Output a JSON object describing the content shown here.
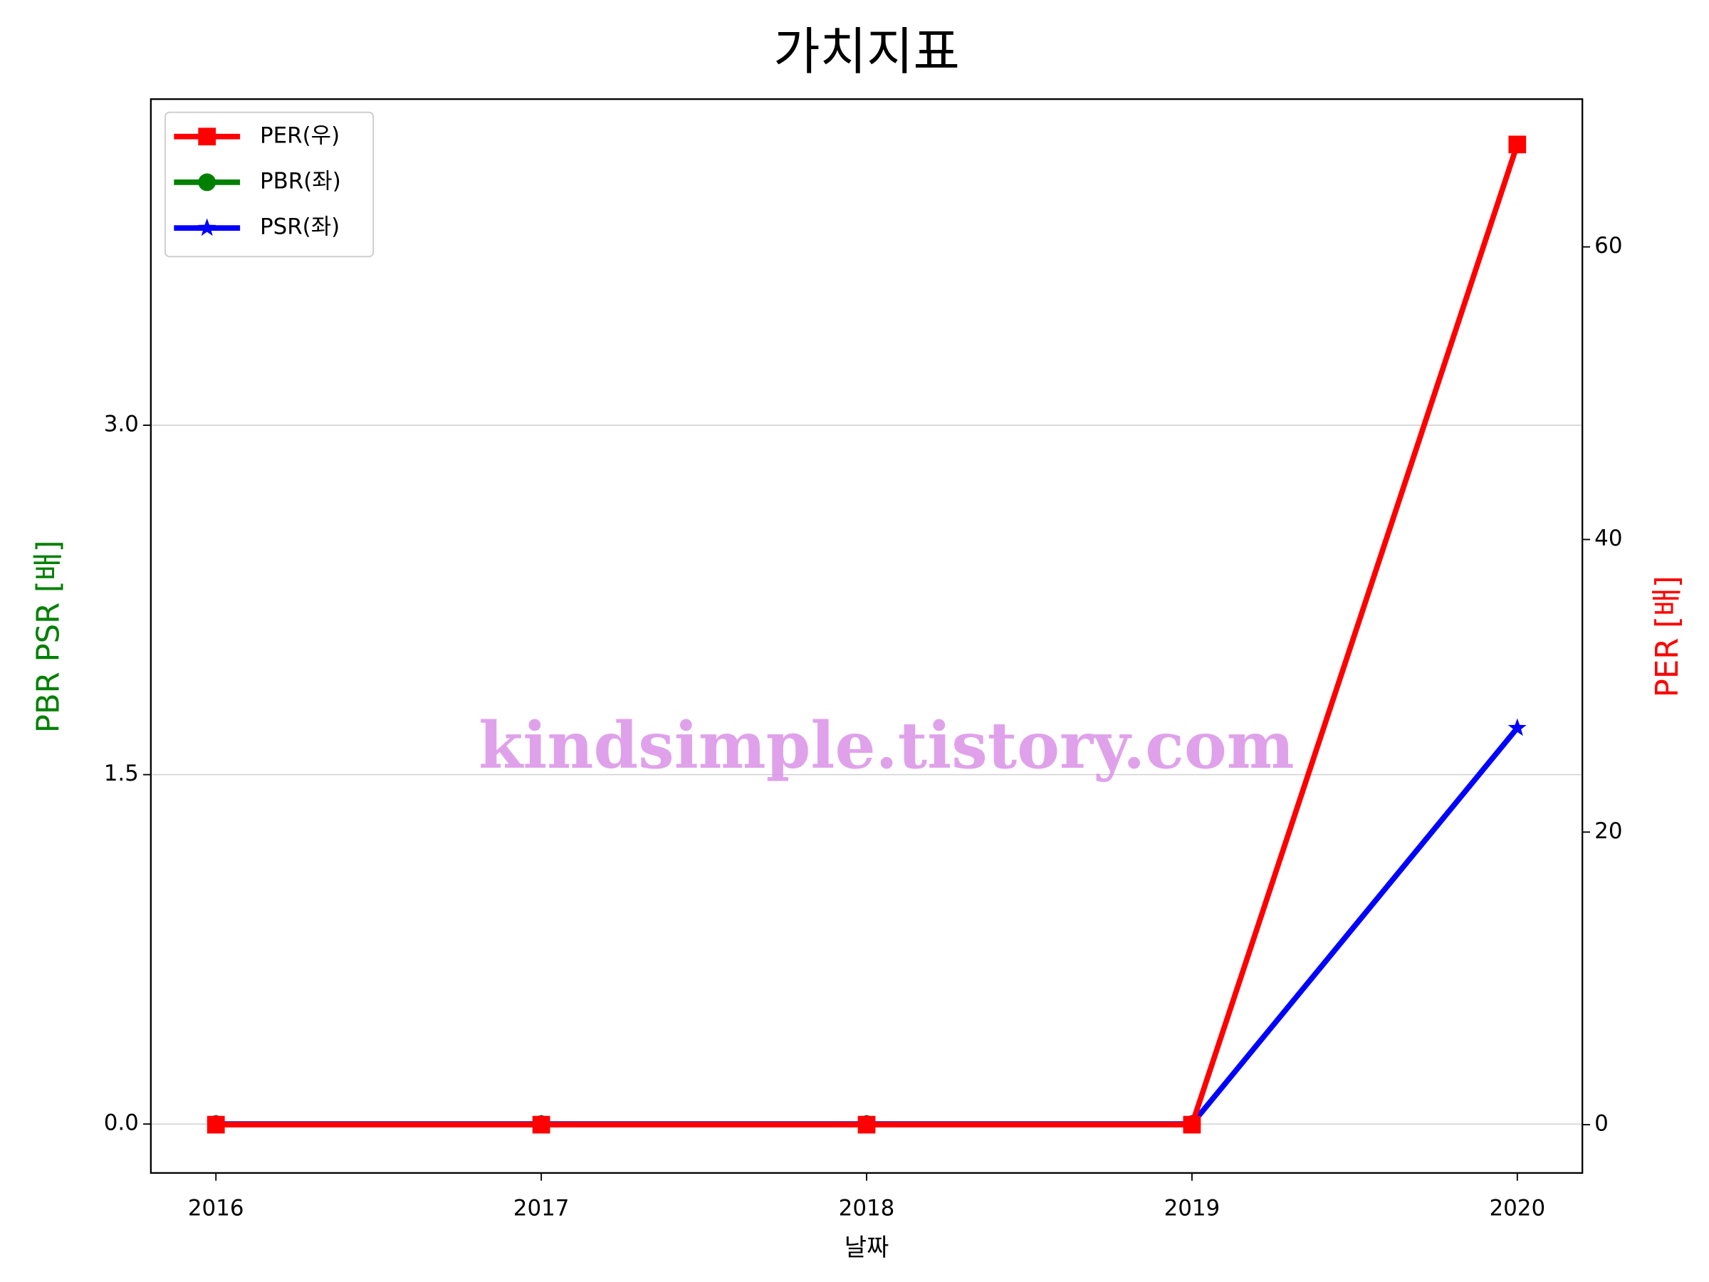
{
  "chart_data": {
    "type": "line",
    "title": "가치지표",
    "x_label": "날짜",
    "y_label": "PBR PSR [배]",
    "y2_label": "PER [배]",
    "annotation": "kindsimple.tistory.com",
    "x": [
      2016,
      2017,
      2018,
      2019,
      2020
    ],
    "xlim": [
      2015.8,
      2020.2
    ],
    "xticks": [
      2016,
      2017,
      2018,
      2019,
      2020
    ],
    "ylim": [
      -0.21,
      4.4
    ],
    "yticks": [
      {
        "value": 0,
        "label": "0.0"
      },
      1.5,
      {
        "value": 3,
        "label": "3.0"
      }
    ],
    "y2lim": [
      -3.3,
      70.1
    ],
    "y2ticks": [
      0,
      20,
      40,
      60
    ],
    "grid": true,
    "legend": "upper left",
    "series": [
      {
        "name": "PBR(좌)",
        "color": "green",
        "marker": "circle",
        "axis": "y",
        "values": [
          0,
          0,
          0,
          0,
          null
        ]
      },
      {
        "name": "PSR(좌)",
        "color": "blue",
        "marker": "star",
        "axis": "y",
        "values": [
          0,
          0,
          0,
          0,
          1.7
        ]
      },
      {
        "name": "PER(우)",
        "color": "red",
        "marker": "square",
        "axis": "y2",
        "values": [
          0,
          0,
          0,
          0,
          67
        ]
      }
    ],
    "legend_order": [
      2,
      0,
      1
    ]
  }
}
